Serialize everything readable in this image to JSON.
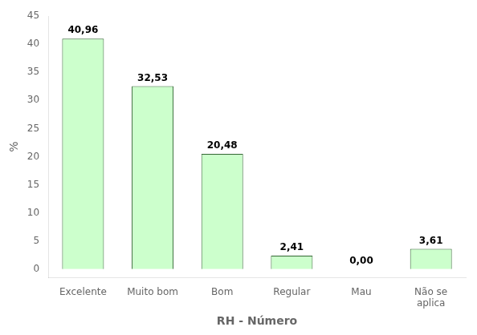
{
  "chart_data": {
    "type": "bar",
    "categories": [
      "Excelente",
      "Muito bom",
      "Bom",
      "Regular",
      "Mau",
      "Não se\naplica"
    ],
    "values": [
      40.96,
      32.53,
      20.48,
      2.41,
      0.0,
      3.61
    ],
    "value_labels": [
      "40,96",
      "32,53",
      "20,48",
      "2,41",
      "0,00",
      "3,61"
    ],
    "data_labels": true,
    "color": "#ccffcc",
    "xlabel": "RH - Número",
    "ylabel": "%",
    "ylim": [
      -1.5,
      45
    ],
    "yticks": [
      0,
      5,
      10,
      15,
      20,
      25,
      30,
      35,
      40,
      45
    ],
    "grid": false
  }
}
